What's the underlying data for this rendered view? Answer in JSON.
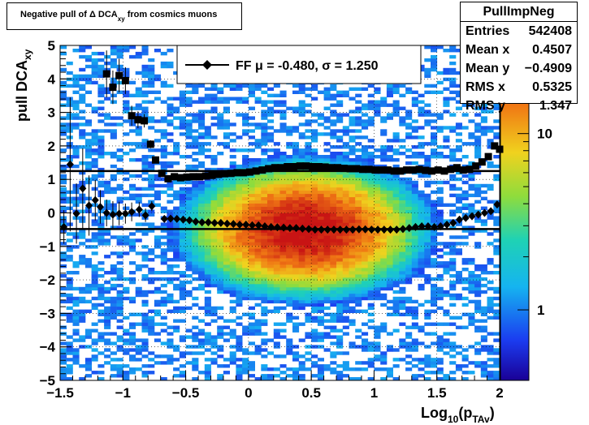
{
  "title": {
    "main": "Negative pull of Δ DCA",
    "sub": "xy",
    "rest": "from cosmics muons"
  },
  "stats": {
    "name": "PullImpNeg",
    "rows": [
      {
        "label": "Entries",
        "value": "542408"
      },
      {
        "label": "Mean x",
        "value": "0.4507"
      },
      {
        "label": "Mean y",
        "value": "−0.4909"
      },
      {
        "label": "RMS x",
        "value": "0.5325"
      },
      {
        "label": "RMS y",
        "value": "1.347"
      }
    ]
  },
  "legend": {
    "text": "FF μ = -0.480, σ =   1.250"
  },
  "chart_data": {
    "type": "heatmap",
    "xlabel": "Log10(pTAv)",
    "xlabel_main": "Log",
    "xlabel_sub1": "10",
    "xlabel_mid": "(p",
    "xlabel_sub2": "TAv",
    "xlabel_end": ")",
    "ylabel": "pull DCAxy",
    "ylabel_main": "pull DCA",
    "ylabel_sub": "xy",
    "xlim": [
      -1.5,
      2
    ],
    "ylim": [
      -5,
      5
    ],
    "x_ticks": [
      "−1.5",
      "−1",
      "−0.5",
      "0",
      "0.5",
      "1",
      "1.5",
      "2"
    ],
    "x_tick_values": [
      -1.5,
      -1,
      -0.5,
      0,
      0.5,
      1,
      1.5,
      2
    ],
    "y_ticks": [
      "−5",
      "−4",
      "−3",
      "−2",
      "−1",
      "0",
      "1",
      "2",
      "3",
      "4",
      "5"
    ],
    "y_tick_values": [
      -5,
      -4,
      -3,
      -2,
      -1,
      0,
      1,
      2,
      3,
      4,
      5
    ],
    "grid": true,
    "colorscale": "log",
    "colorbar_ticks": [
      "1",
      "10"
    ],
    "colorbar_tick_values": [
      1,
      10
    ],
    "density_peak": {
      "x": 0.45,
      "y": -0.49
    },
    "fit_lines": {
      "mean": -0.48,
      "sigma": 1.25
    },
    "series": [
      {
        "name": "mean",
        "marker": "diamond",
        "x": [
          -1.47,
          -1.42,
          -1.37,
          -1.32,
          -1.27,
          -1.22,
          -1.18,
          -1.13,
          -1.08,
          -1.03,
          -0.98,
          -0.93,
          -0.87,
          -0.82,
          -0.77,
          -0.67,
          -0.62,
          -0.57,
          -0.52,
          -0.47,
          -0.42,
          -0.37,
          -0.32,
          -0.27,
          -0.22,
          -0.17,
          -0.12,
          -0.07,
          -0.02,
          0.03,
          0.08,
          0.13,
          0.18,
          0.23,
          0.28,
          0.33,
          0.38,
          0.43,
          0.48,
          0.53,
          0.58,
          0.63,
          0.68,
          0.73,
          0.78,
          0.83,
          0.88,
          0.93,
          0.98,
          1.03,
          1.08,
          1.13,
          1.18,
          1.23,
          1.28,
          1.33,
          1.38,
          1.43,
          1.48,
          1.53,
          1.58,
          1.63,
          1.68,
          1.73,
          1.78,
          1.83,
          1.88,
          1.93,
          1.98
        ],
        "y": [
          -0.42,
          1.45,
          -0.02,
          0.73,
          0.22,
          0.38,
          0.18,
          0.0,
          -0.05,
          -0.02,
          -0.02,
          0.03,
          0.1,
          -0.07,
          0.2,
          -0.18,
          -0.17,
          -0.18,
          -0.2,
          -0.22,
          -0.26,
          -0.28,
          -0.28,
          -0.3,
          -0.3,
          -0.32,
          -0.33,
          -0.35,
          -0.35,
          -0.37,
          -0.37,
          -0.4,
          -0.42,
          -0.43,
          -0.44,
          -0.45,
          -0.45,
          -0.47,
          -0.48,
          -0.5,
          -0.5,
          -0.5,
          -0.5,
          -0.5,
          -0.5,
          -0.5,
          -0.49,
          -0.49,
          -0.5,
          -0.5,
          -0.5,
          -0.5,
          -0.5,
          -0.48,
          -0.45,
          -0.42,
          -0.4,
          -0.4,
          -0.42,
          -0.4,
          -0.35,
          -0.3,
          -0.2,
          -0.15,
          -0.1,
          -0.05,
          0.0,
          0.05,
          0.25
        ],
        "err": [
          0.5,
          2.0,
          0.9,
          1.2,
          0.9,
          0.6,
          0.5,
          0.4,
          0.4,
          0.35,
          0.3,
          0.28,
          0.22,
          0.2,
          0.15,
          0.05,
          0.04,
          0.03,
          0.02,
          0.02,
          0.02,
          0.02,
          0.01,
          0.01,
          0.01,
          0.01,
          0.01,
          0.01,
          0.01,
          0.01,
          0.01,
          0.01,
          0.01,
          0.01,
          0.01,
          0.01,
          0.01,
          0.01,
          0.01,
          0.01,
          0.01,
          0.01,
          0.01,
          0.01,
          0.01,
          0.01,
          0.01,
          0.01,
          0.01,
          0.01,
          0.01,
          0.01,
          0.01,
          0.01,
          0.01,
          0.01,
          0.01,
          0.01,
          0.01,
          0.02,
          0.02,
          0.02,
          0.02,
          0.02,
          0.02,
          0.03,
          0.03,
          0.03,
          0.05
        ]
      },
      {
        "name": "sigma",
        "marker": "square",
        "x": [
          -1.13,
          -1.08,
          -1.03,
          -0.98,
          -0.93,
          -0.88,
          -0.83,
          -0.78,
          -0.74,
          -0.69,
          -0.64,
          -0.59,
          -0.54,
          -0.49,
          -0.44,
          -0.39,
          -0.34,
          -0.29,
          -0.24,
          -0.19,
          -0.14,
          -0.09,
          -0.04,
          0.01,
          0.06,
          0.11,
          0.16,
          0.21,
          0.26,
          0.31,
          0.36,
          0.41,
          0.46,
          0.51,
          0.56,
          0.61,
          0.66,
          0.71,
          0.76,
          0.81,
          0.86,
          0.91,
          0.96,
          1.01,
          1.06,
          1.11,
          1.16,
          1.21,
          1.26,
          1.31,
          1.36,
          1.41,
          1.46,
          1.51,
          1.56,
          1.61,
          1.66,
          1.71,
          1.76,
          1.81,
          1.86,
          1.91,
          1.96,
          2.0
        ],
        "y": [
          4.15,
          3.75,
          4.1,
          3.95,
          2.9,
          2.78,
          2.75,
          2.05,
          1.58,
          1.18,
          1.02,
          1.08,
          1.05,
          1.07,
          1.08,
          1.08,
          1.1,
          1.12,
          1.15,
          1.17,
          1.18,
          1.2,
          1.2,
          1.22,
          1.25,
          1.28,
          1.32,
          1.35,
          1.35,
          1.38,
          1.38,
          1.4,
          1.4,
          1.38,
          1.38,
          1.37,
          1.35,
          1.35,
          1.33,
          1.32,
          1.32,
          1.3,
          1.3,
          1.28,
          1.28,
          1.28,
          1.25,
          1.25,
          1.28,
          1.28,
          1.3,
          1.27,
          1.25,
          1.28,
          1.25,
          1.3,
          1.35,
          1.28,
          1.3,
          1.4,
          1.52,
          1.68,
          2.0,
          1.9
        ],
        "err": [
          0.7,
          0.5,
          0.5,
          0.4,
          0.3,
          0.25,
          0.2,
          0.12,
          0.08,
          0.05,
          0.04,
          0.03,
          0.02,
          0.02,
          0.02,
          0.02,
          0.02,
          0.01,
          0.01,
          0.01,
          0.01,
          0.01,
          0.01,
          0.01,
          0.01,
          0.01,
          0.01,
          0.01,
          0.01,
          0.01,
          0.01,
          0.01,
          0.01,
          0.01,
          0.01,
          0.01,
          0.01,
          0.01,
          0.01,
          0.01,
          0.01,
          0.01,
          0.01,
          0.01,
          0.01,
          0.01,
          0.01,
          0.01,
          0.01,
          0.01,
          0.01,
          0.01,
          0.01,
          0.02,
          0.02,
          0.02,
          0.02,
          0.02,
          0.02,
          0.03,
          0.03,
          0.04,
          0.05,
          0.06
        ]
      }
    ]
  }
}
